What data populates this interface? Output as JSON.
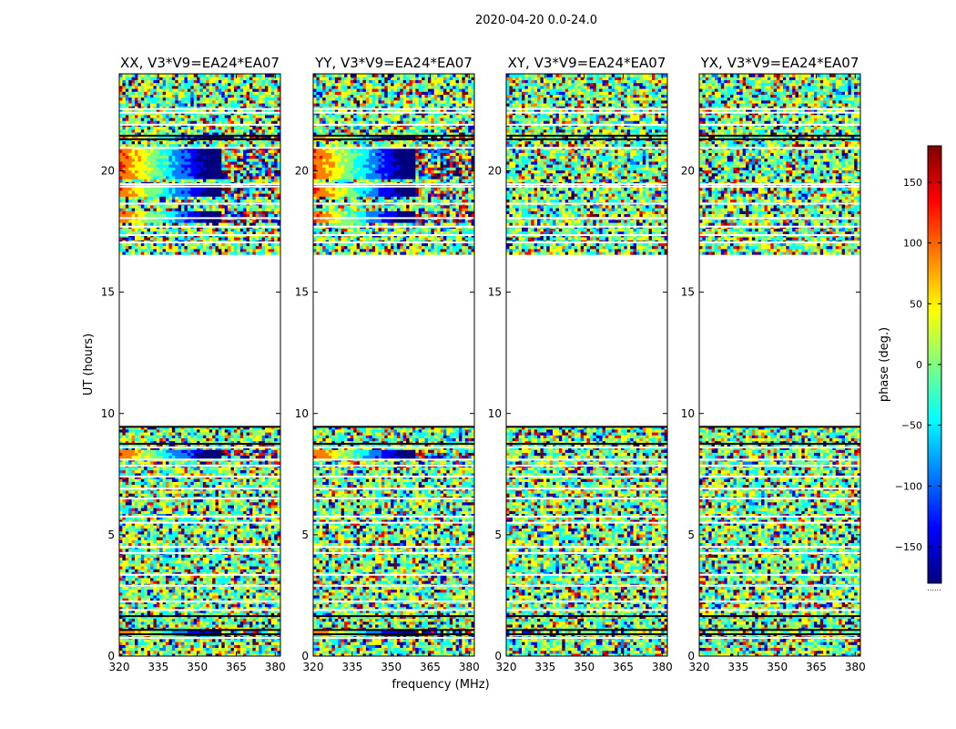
{
  "figure_title": "2020-04-20 0.0-24.0",
  "colors": {
    "jet": [
      "#00007f",
      "#0000ff",
      "#007fff",
      "#00ffff",
      "#7fff7f",
      "#ffff00",
      "#ff7f00",
      "#ff0000",
      "#7f0000"
    ],
    "flag_line": "#000000",
    "gap": "#ffffff"
  },
  "chart_data": {
    "type": "heatmap",
    "shared_xlabel": "frequency (MHz)",
    "shared_ylabel": "UT (hours)",
    "xlim": [
      320,
      382
    ],
    "ylim": [
      0,
      24
    ],
    "xticks": [
      320,
      335,
      350,
      365,
      380
    ],
    "yticks": [
      0,
      5,
      10,
      15,
      20
    ],
    "gap_ut_hours": [
      9.5,
      16.5
    ],
    "coherent_signal_ut_bands": [
      [
        0.85,
        1.1
      ],
      [
        8.2,
        8.5
      ],
      [
        17.9,
        18.4
      ],
      [
        19.0,
        19.4
      ],
      [
        19.7,
        21.0
      ],
      [
        21.35,
        21.5
      ]
    ],
    "panels": [
      {
        "title": "XX, V3*V9=EA24*EA07",
        "pol": "XX",
        "signal": true
      },
      {
        "title": "YY, V3*V9=EA24*EA07",
        "pol": "YY",
        "signal": true
      },
      {
        "title": "XY, V3*V9=EA24*EA07",
        "pol": "XY",
        "signal": false
      },
      {
        "title": "YX, V3*V9=EA24*EA07",
        "pol": "YX",
        "signal": false
      }
    ],
    "colorbar": {
      "label": "phase (deg.)",
      "range": [
        -180,
        180
      ],
      "ticks": [
        -150,
        -100,
        -50,
        0,
        50,
        100,
        150
      ],
      "tick_labels": [
        "−150",
        "−100",
        "−50",
        "0",
        "50",
        "100",
        "150"
      ],
      "under_label": "......"
    }
  }
}
